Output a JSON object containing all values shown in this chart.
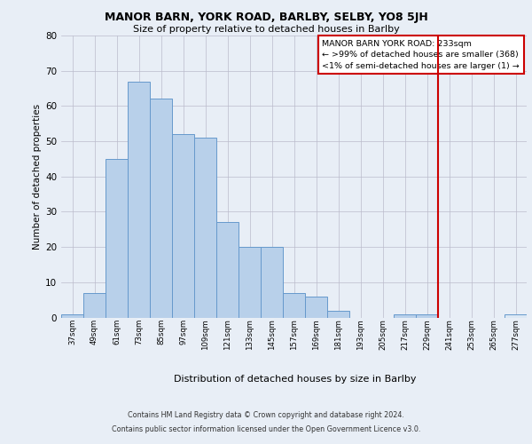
{
  "title": "MANOR BARN, YORK ROAD, BARLBY, SELBY, YO8 5JH",
  "subtitle": "Size of property relative to detached houses in Barlby",
  "xlabel": "Distribution of detached houses by size in Barlby",
  "ylabel": "Number of detached properties",
  "categories": [
    "37sqm",
    "49sqm",
    "61sqm",
    "73sqm",
    "85sqm",
    "97sqm",
    "109sqm",
    "121sqm",
    "133sqm",
    "145sqm",
    "157sqm",
    "169sqm",
    "181sqm",
    "193sqm",
    "205sqm",
    "217sqm",
    "229sqm",
    "241sqm",
    "253sqm",
    "265sqm",
    "277sqm"
  ],
  "values": [
    1,
    7,
    45,
    67,
    62,
    52,
    51,
    27,
    20,
    20,
    7,
    6,
    2,
    0,
    0,
    1,
    1,
    0,
    0,
    0,
    1
  ],
  "bar_color": "#b8d0ea",
  "bar_edge_color": "#6699cc",
  "highlight_color": "#dce8f4",
  "red_line_x": 16.5,
  "legend_title": "MANOR BARN YORK ROAD: 233sqm",
  "legend_line1": "← >99% of detached houses are smaller (368)",
  "legend_line2": "<1% of semi-detached houses are larger (1) →",
  "footer_line1": "Contains HM Land Registry data © Crown copyright and database right 2024.",
  "footer_line2": "Contains public sector information licensed under the Open Government Licence v3.0.",
  "ylim": [
    0,
    80
  ],
  "yticks": [
    0,
    10,
    20,
    30,
    40,
    50,
    60,
    70,
    80
  ],
  "bg_color": "#e8eef6",
  "plot_bg_color": "#e8eef6"
}
